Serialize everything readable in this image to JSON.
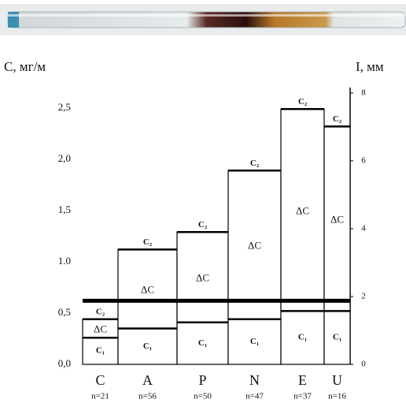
{
  "chart_data": {
    "type": "bar",
    "y_label": "C, мг/м",
    "y2_label": "I, мм",
    "categories": [
      "C",
      "A",
      "P",
      "N",
      "E",
      "U"
    ],
    "n_labels": [
      "n=21",
      "n=56",
      "n=50",
      "n=47",
      "n=37",
      "n=16"
    ],
    "series": [
      {
        "name": "C₁",
        "color": "#000000",
        "values": [
          0.26,
          0.35,
          0.41,
          0.44,
          0.52,
          0.52
        ]
      },
      {
        "name": "C₂",
        "color": "#000000",
        "values": [
          0.44,
          1.12,
          1.29,
          1.89,
          2.49,
          2.32
        ]
      }
    ],
    "delta_label": "ΔC",
    "threshold": 0.62,
    "ylim": [
      0,
      2.7
    ],
    "yticks": [
      {
        "value": 0,
        "label": "0,0"
      },
      {
        "value": 0.5,
        "label": "0,5"
      },
      {
        "value": 1,
        "label": "1.0"
      },
      {
        "value": 1.5,
        "label": "1,5"
      },
      {
        "value": 2,
        "label": "2,0"
      },
      {
        "value": 2.5,
        "label": "2,5"
      }
    ],
    "y2lim": [
      0,
      8.16
    ],
    "y2ticks": [
      0,
      2,
      4,
      6,
      8
    ]
  }
}
